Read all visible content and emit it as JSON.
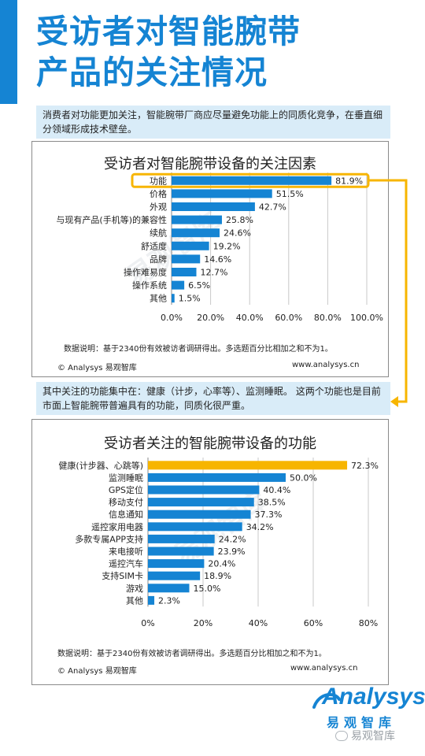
{
  "page": {
    "title_line1": "受访者对智能腕带",
    "title_line2": "产品的关注情况",
    "note1": "消费者对功能更加关注，智能腕带厂商应尽量避免功能上的同质化竞争，在垂直细分领域形成技术壁垒。",
    "note2": "其中关注的功能集中在：健康（计步，心率等）、监测睡眠。 这两个功能也是目前市面上智能腕带普遍具有的功能，同质化很严重。",
    "footnote": "数据说明：基于2340份有效被访者调研得出。多选题百分比相加之和不为1。",
    "credit_left": "© Analysys 易观智库",
    "credit_right": "www.analysys.cn",
    "watermark": "易观智库",
    "logo_word": "Analysys",
    "logo_cn": "易观智库",
    "wechat_text": "易观智库",
    "colors": {
      "accent": "#1584d3",
      "highlight": "#f7b500",
      "note_bg": "#d9ecf8"
    }
  },
  "chart_data": [
    {
      "type": "bar",
      "orientation": "horizontal",
      "title": "受访者对智能腕带设备的关注因素",
      "categories": [
        "功能",
        "价格",
        "外观",
        "与现有产品(手机等)的兼容性",
        "续航",
        "舒适度",
        "品牌",
        "操作难易度",
        "操作系统",
        "其他"
      ],
      "values": [
        81.9,
        51.5,
        42.7,
        25.8,
        24.6,
        19.2,
        14.6,
        12.7,
        6.5,
        1.5
      ],
      "labels": [
        "81.9%",
        "51.5%",
        "42.7%",
        "25.8%",
        "24.6%",
        "19.2%",
        "14.6%",
        "12.7%",
        "6.5%",
        "1.5%"
      ],
      "xlim": [
        0,
        100
      ],
      "ticks": [
        0,
        20,
        40,
        60,
        80,
        100
      ],
      "tick_labels": [
        "0.0%",
        "20.0%",
        "40.0%",
        "60.0%",
        "80.0%",
        "100.0%"
      ],
      "grid": true,
      "bar_color": "#1584d3",
      "highlight_index": 0,
      "highlight_style": "outline"
    },
    {
      "type": "bar",
      "orientation": "horizontal",
      "title": "受访者关注的智能腕带设备的功能",
      "categories": [
        "健康(计步器、心跳等)",
        "监测睡眠",
        "GPS定位",
        "移动支付",
        "信息通知",
        "遥控家用电器",
        "多款专属APP支持",
        "来电接听",
        "遥控汽车",
        "支持SIM卡",
        "游戏",
        "其他"
      ],
      "values": [
        72.3,
        50.0,
        40.4,
        38.5,
        37.3,
        34.2,
        24.2,
        23.9,
        20.4,
        18.9,
        15.0,
        2.3
      ],
      "labels": [
        "72.3%",
        "50.0%",
        "40.4%",
        "38.5%",
        "37.3%",
        "34.2%",
        "24.2%",
        "23.9%",
        "20.4%",
        "18.9%",
        "15.0%",
        "2.3%"
      ],
      "xlim": [
        0,
        80
      ],
      "ticks": [
        0,
        20,
        40,
        60,
        80
      ],
      "tick_labels": [
        "0%",
        "20%",
        "40%",
        "60%",
        "80%"
      ],
      "grid": true,
      "bar_color": "#1584d3",
      "highlight_index": 0,
      "highlight_color": "#f7b500",
      "highlight_style": "fill"
    }
  ]
}
